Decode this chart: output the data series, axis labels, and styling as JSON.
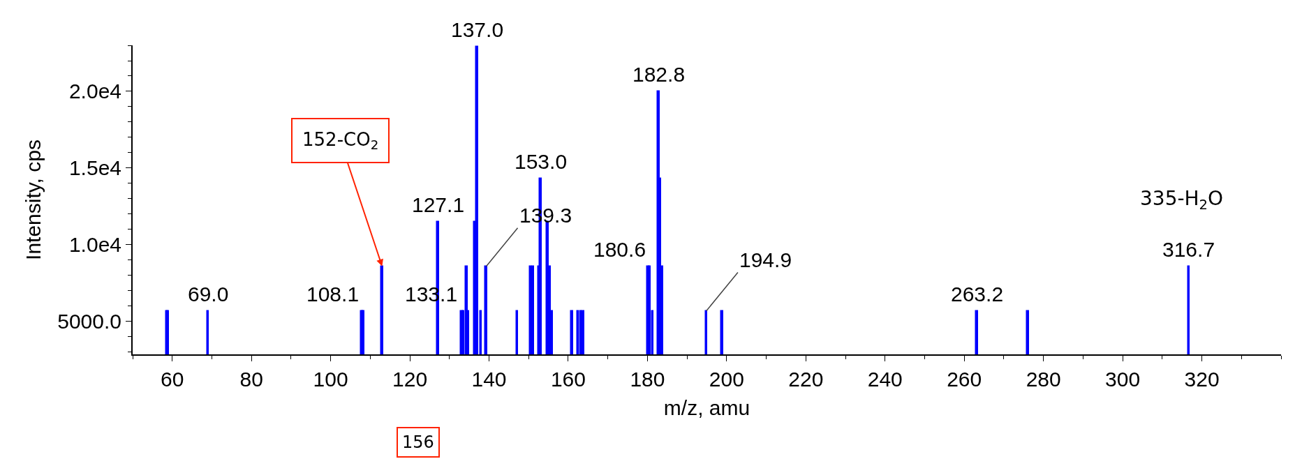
{
  "chart_data": {
    "type": "bar",
    "xlabel": "m/z, amu",
    "ylabel": "Intensity, cps",
    "x": [
      58.6,
      59.0,
      69.0,
      107.9,
      108.3,
      113.0,
      127.1,
      133.1,
      133.6,
      134.4,
      134.7,
      136.5,
      137.0,
      138.0,
      139.3,
      147.1,
      150.6,
      151.2,
      152.7,
      153.0,
      154.8,
      155.3,
      155.9,
      161.0,
      162.5,
      163.2,
      163.8,
      180.2,
      180.6,
      181.3,
      182.8,
      183.3,
      183.7,
      194.9,
      198.9,
      263.2,
      276.1,
      316.7
    ],
    "values": [
      5700,
      5700,
      5700,
      5700,
      5700,
      8600,
      11500,
      5700,
      5700,
      8600,
      5700,
      11500,
      22900,
      5700,
      8600,
      5700,
      8600,
      8600,
      8600,
      14300,
      11500,
      8600,
      5700,
      5700,
      5700,
      5700,
      5700,
      8600,
      8600,
      5700,
      20000,
      14300,
      8600,
      5700,
      5700,
      5700,
      5700,
      8600
    ],
    "color": "#0000ff",
    "xlim": [
      50,
      340
    ],
    "xticks": [
      60,
      80,
      100,
      120,
      140,
      160,
      180,
      200,
      220,
      240,
      260,
      280,
      300,
      320
    ],
    "ylim": [
      2860,
      23000
    ],
    "yticks": [
      {
        "value": 5000,
        "label": "5000.0"
      },
      {
        "value": 10000,
        "label": "1.0e4"
      },
      {
        "value": 15000,
        "label": "1.5e4"
      },
      {
        "value": 20000,
        "label": "2.0e4"
      }
    ],
    "annotations": [
      {
        "text": "69.0",
        "x": 69.0,
        "y": 5700
      },
      {
        "text": "108.1",
        "x": 108.1,
        "y": 5700
      },
      {
        "text": "127.1",
        "x": 127.1,
        "y": 11500
      },
      {
        "text": "133.1",
        "x": 133.1,
        "y": 5700
      },
      {
        "text": "137.0",
        "x": 137.0,
        "y": 22900
      },
      {
        "text": "139.3",
        "x": 139.3,
        "y": 8600
      },
      {
        "text": "153.0",
        "x": 153.0,
        "y": 14300
      },
      {
        "text": "180.6",
        "x": 180.6,
        "y": 8600
      },
      {
        "text": "182.8",
        "x": 182.8,
        "y": 20000
      },
      {
        "text": "194.9",
        "x": 194.9,
        "y": 5700
      },
      {
        "text": "263.2",
        "x": 263.2,
        "y": 5700
      },
      {
        "text": "316.7",
        "x": 316.7,
        "y": 8600
      },
      {
        "text": "152-CO$_{2}$",
        "x": 113.0,
        "y": 8600
      },
      {
        "text": "335-H$_{2}$O",
        "x": 316.7,
        "y": 8600
      },
      "156"
    ]
  }
}
